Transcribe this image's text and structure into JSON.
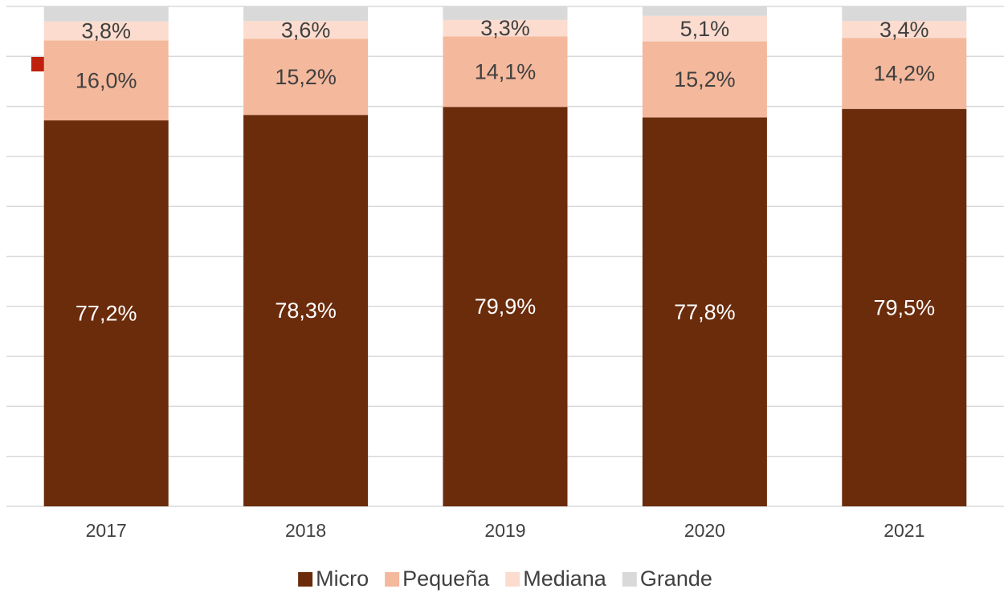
{
  "chart_data": {
    "type": "stacked_bar",
    "categories": [
      "2017",
      "2018",
      "2019",
      "2020",
      "2021"
    ],
    "series": [
      {
        "name": "Micro",
        "color": "#6b2c0c",
        "values": [
          77.2,
          78.3,
          79.9,
          77.8,
          79.5
        ],
        "value_labels": [
          "77,2%",
          "78,3%",
          "79,9%",
          "77,8%",
          "79,5%"
        ]
      },
      {
        "name": "Pequeña",
        "color": "#f4b89c",
        "values": [
          16.0,
          15.2,
          14.1,
          15.2,
          14.2
        ],
        "value_labels": [
          "16,0%",
          "15,2%",
          "14,1%",
          "15,2%",
          "14,2%"
        ]
      },
      {
        "name": "Mediana",
        "color": "#fbdcce",
        "values": [
          3.8,
          3.6,
          3.3,
          5.1,
          3.4
        ],
        "value_labels": [
          "3,8%",
          "3,6%",
          "3,3%",
          "5,1%",
          "3,4%"
        ]
      },
      {
        "name": "Grande",
        "color": "#d9d9d9",
        "values": [
          3.0,
          2.9,
          2.7,
          1.9,
          2.9
        ]
      }
    ],
    "ylim": [
      0,
      100
    ],
    "yticks": [
      0,
      10,
      20,
      30,
      40,
      50,
      60,
      70,
      80,
      90,
      100
    ],
    "grid": true
  }
}
